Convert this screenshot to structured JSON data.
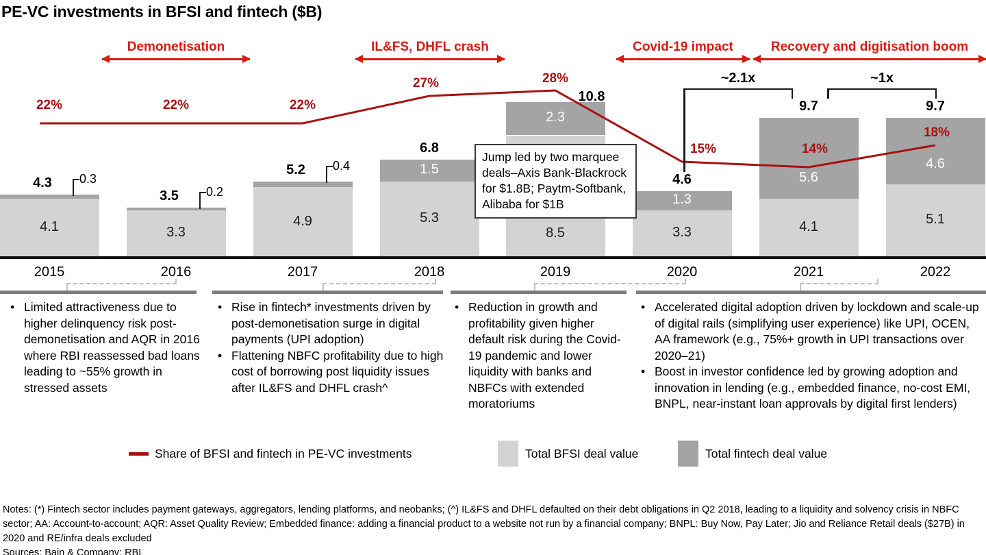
{
  "title": "PE-VC investments in BFSI and fintech ($B)",
  "eras": [
    {
      "label": "Demonetisation"
    },
    {
      "label": "IL&FS, DHFL crash"
    },
    {
      "label": "Covid-19 impact"
    },
    {
      "label": "Recovery and digitisation boom"
    }
  ],
  "chart_data": {
    "type": "bar",
    "stacked": true,
    "title": "PE-VC investments in BFSI and fintech ($B)",
    "categories": [
      "2015",
      "2016",
      "2017",
      "2018",
      "2019",
      "2020",
      "2021",
      "2022"
    ],
    "series": [
      {
        "name": "Total BFSI deal value",
        "values": [
          4.1,
          3.3,
          4.9,
          5.3,
          8.5,
          3.3,
          4.1,
          5.1
        ],
        "color": "#d3d3d3"
      },
      {
        "name": "Total fintech deal value",
        "values": [
          0.3,
          0.2,
          0.4,
          1.5,
          2.3,
          1.3,
          5.6,
          4.6
        ],
        "color": "#a4a4a4"
      }
    ],
    "totals": [
      4.3,
      3.5,
      5.2,
      6.8,
      10.8,
      4.6,
      9.7,
      9.7
    ],
    "line_series": {
      "name": "Share of BFSI and fintech in PE-VC investments",
      "values_pct": [
        22,
        22,
        22,
        27,
        28,
        15,
        14,
        18
      ],
      "color": "#a8100f"
    },
    "growth_brackets": [
      {
        "label": "~2.1x",
        "from": "2020",
        "to": "2021"
      },
      {
        "label": "~1x",
        "from": "2021",
        "to": "2022"
      }
    ],
    "callout": {
      "text": "Jump led by two marquee deals–Axis Bank-Blackrock for $1.8B; Paytm-Softbank, Alibaba for $1B"
    },
    "legend_position": "bottom",
    "grid": false
  },
  "insights": [
    {
      "bullets": [
        "Limited attractiveness due to higher delinquency risk post-demonetisation and AQR in 2016 where RBI reassessed bad loans leading to ~55% growth in stressed assets"
      ]
    },
    {
      "bullets": [
        "Rise in fintech* investments driven by post-demonetisation surge in digital payments (UPI adoption)",
        "Flattening NBFC profitability due to high cost of borrowing post liquidity issues after IL&FS and DHFL crash^"
      ]
    },
    {
      "bullets": [
        "Reduction in growth and profitability given higher default risk during the Covid-19 pandemic and lower liquidity with banks and NBFCs with extended moratoriums"
      ]
    },
    {
      "bullets": [
        "Accelerated digital adoption driven by lockdown and scale-up of digital rails (simplifying user experience) like UPI, OCEN, AA framework (e.g., 75%+ growth in UPI transactions over 2020–21)",
        "Boost in investor confidence led by growing adoption and innovation in lending (e.g., embedded finance, no-cost EMI, BNPL, near-instant loan approvals by digital first lenders)"
      ]
    }
  ],
  "legend": [
    {
      "type": "line",
      "label": "Share of BFSI and fintech in PE-VC investments"
    },
    {
      "type": "box-light",
      "label": "Total BFSI deal value"
    },
    {
      "type": "box-dark",
      "label": "Total fintech deal value"
    }
  ],
  "notes": "Notes: (*) Fintech sector includes payment gateways, aggregators, lending platforms, and neobanks; (^) IL&FS and DHFL defaulted on their debt obligations in Q2 2018, leading to a liquidity and solvency crisis in NBFC sector; AA: Account-to-account; AQR: Asset Quality Review; Embedded finance: adding a financial product to a website not run by a financial company; BNPL: Buy Now, Pay Later; Jio and Reliance Retail deals ($27B) in 2020 and RE/infra deals excluded",
  "sources": "Sources: Bain & Company; RBI"
}
